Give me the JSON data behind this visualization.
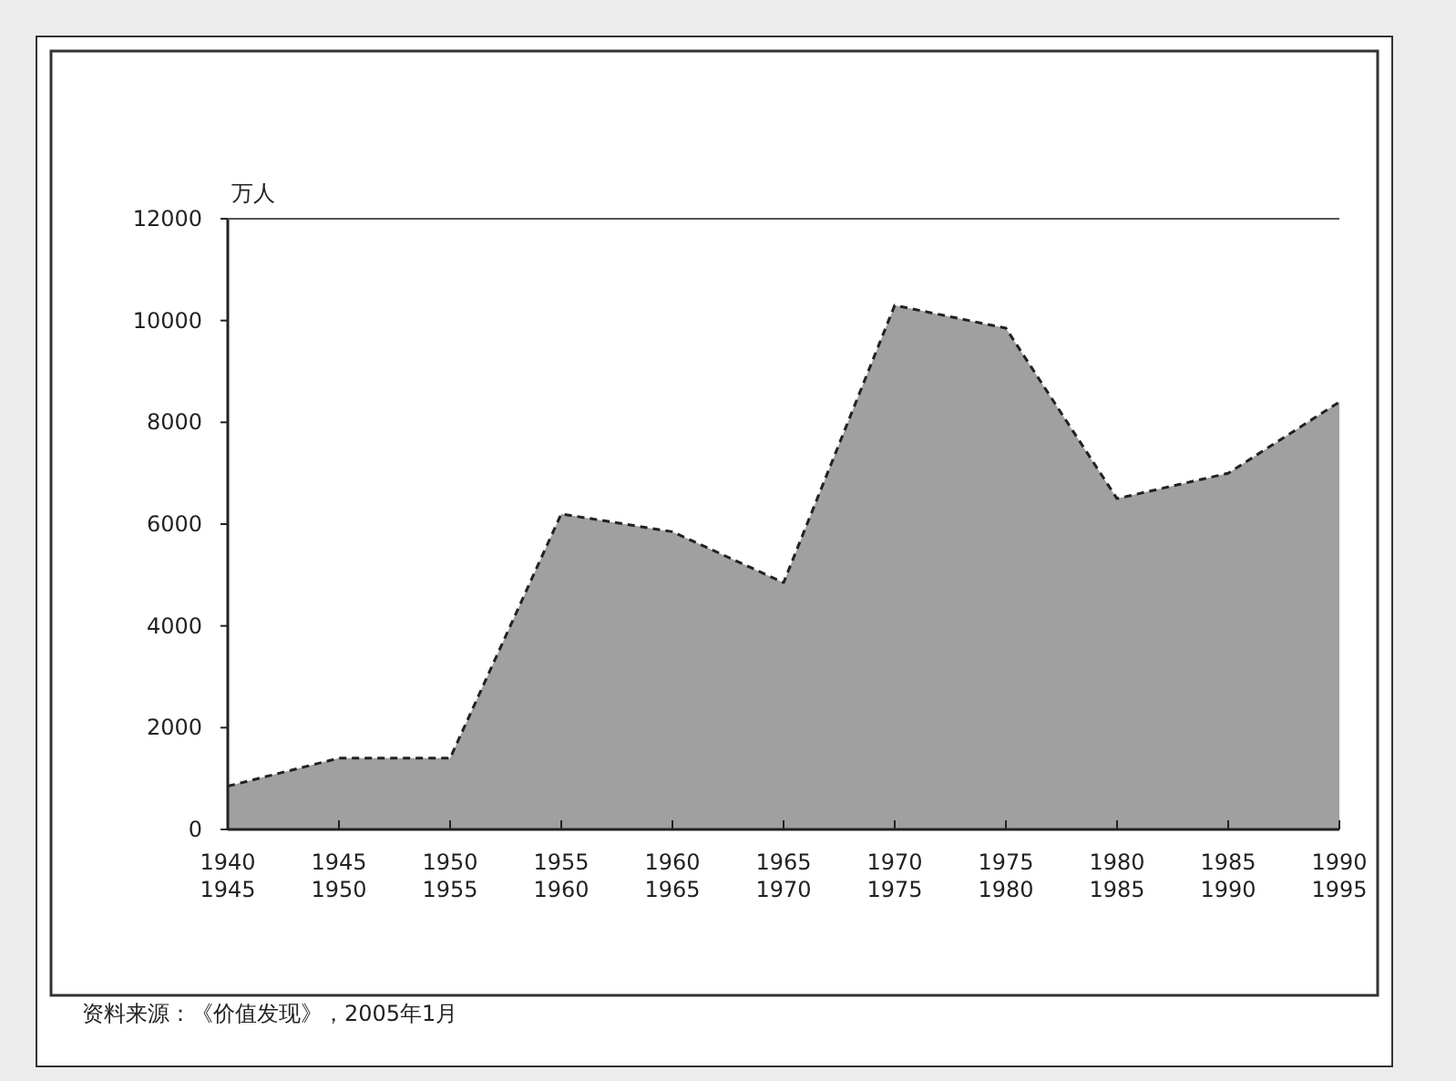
{
  "chart_data": {
    "type": "area",
    "ylabel": "万人",
    "categories": [
      "1940\n1945",
      "1945\n1950",
      "1950\n1955",
      "1955\n1960",
      "1960\n1965",
      "1965\n1970",
      "1970\n1975",
      "1975\n1980",
      "1980\n1985",
      "1985\n1990",
      "1990\n1995"
    ],
    "series": [
      {
        "color": "#a0a0a0",
        "values": [
          850,
          1400,
          1400,
          6200,
          5850,
          4850,
          10300,
          9850,
          6500,
          7000,
          8400
        ]
      }
    ],
    "ylim": [
      0,
      12000
    ],
    "yticks": [
      0,
      2000,
      4000,
      6000,
      8000,
      10000,
      12000
    ],
    "grid": false,
    "line_style": "dashed",
    "annotations": [
      "资料来源：《价值发现》，2005年1月"
    ]
  }
}
